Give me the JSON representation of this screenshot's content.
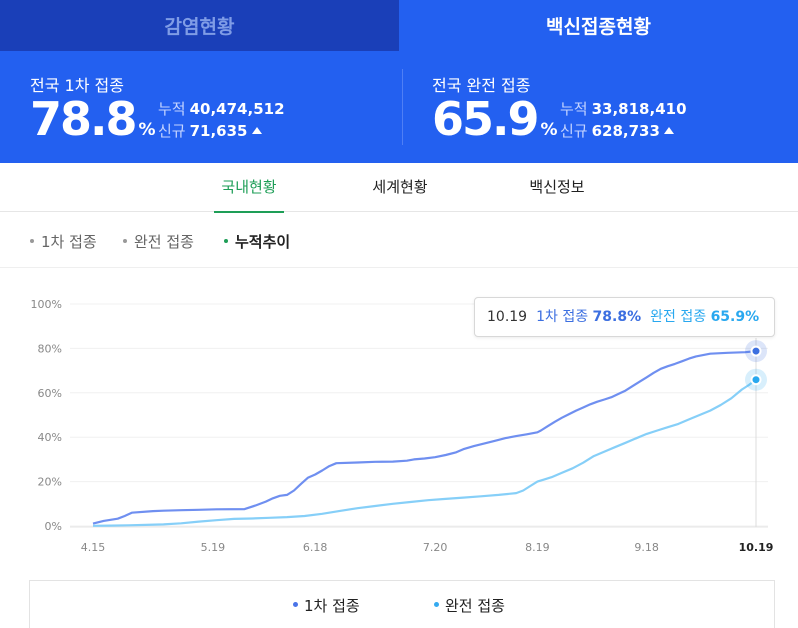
{
  "top_tabs": [
    {
      "label": "감염현황",
      "active": false
    },
    {
      "label": "백신접종현황",
      "active": true
    }
  ],
  "stats": {
    "first": {
      "label": "전국 1차 접종",
      "percent": "78.8",
      "percent_unit": "%",
      "total_label": "누적",
      "total_value": "40,474,512",
      "new_label": "신규",
      "new_value": "71,635"
    },
    "full": {
      "label": "전국 완전 접종",
      "percent": "65.9",
      "percent_unit": "%",
      "total_label": "누적",
      "total_value": "33,818,410",
      "new_label": "신규",
      "new_value": "628,733"
    }
  },
  "sub_tabs": [
    {
      "label": "국내현황",
      "active": true
    },
    {
      "label": "세계현황",
      "active": false
    },
    {
      "label": "백신정보",
      "active": false
    }
  ],
  "filters": [
    {
      "label": "1차 접종",
      "active": false
    },
    {
      "label": "완전 접종",
      "active": false
    },
    {
      "label": "누적추이",
      "active": true
    }
  ],
  "tooltip": {
    "date": "10.19",
    "first_label": "1차 접종",
    "first_value": "78.8%",
    "full_label": "완전 접종",
    "full_value": "65.9%"
  },
  "legend": [
    {
      "label": "1차 접종",
      "color": "#4a74e8"
    },
    {
      "label": "완전 접종",
      "color": "#34aaf0"
    }
  ],
  "colors": {
    "first_line": "#6f8ff0",
    "full_line": "#86cff8",
    "first_point": "#3c6fe0",
    "full_point": "#29a8ef"
  },
  "chart_data": {
    "type": "line",
    "title": "",
    "xlabel": "",
    "ylabel": "",
    "x_ticks": [
      "4.15",
      "5.19",
      "6.18",
      "7.20",
      "8.19",
      "9.18",
      "10.19"
    ],
    "y_ticks": [
      "0%",
      "20%",
      "40%",
      "60%",
      "80%",
      "100%"
    ],
    "ylim": [
      0,
      100
    ],
    "grid": true,
    "legend_position": "bottom",
    "highlighted_x": "10.19",
    "series": [
      {
        "name": "1차 접종",
        "points": [
          [
            0,
            1.1
          ],
          [
            3,
            2.3
          ],
          [
            7,
            3.3
          ],
          [
            9,
            4.5
          ],
          [
            11,
            6.0
          ],
          [
            17,
            6.7
          ],
          [
            20,
            6.9
          ],
          [
            25,
            7.1
          ],
          [
            30,
            7.3
          ],
          [
            35,
            7.5
          ],
          [
            43,
            7.6
          ],
          [
            46,
            9.2
          ],
          [
            49,
            11.0
          ],
          [
            51,
            12.5
          ],
          [
            53,
            13.6
          ],
          [
            55,
            14.0
          ],
          [
            57,
            16.0
          ],
          [
            59,
            19.0
          ],
          [
            61,
            21.8
          ],
          [
            63,
            23.2
          ],
          [
            65,
            25.0
          ],
          [
            67,
            27.0
          ],
          [
            69,
            28.3
          ],
          [
            75,
            28.6
          ],
          [
            80,
            28.9
          ],
          [
            85,
            29.0
          ],
          [
            89,
            29.4
          ],
          [
            91,
            30.0
          ],
          [
            94,
            30.4
          ],
          [
            97,
            31.0
          ],
          [
            100,
            32.0
          ],
          [
            103,
            33.2
          ],
          [
            105,
            34.6
          ],
          [
            108,
            36.0
          ],
          [
            111,
            37.2
          ],
          [
            114,
            38.4
          ],
          [
            117,
            39.6
          ],
          [
            120,
            40.5
          ],
          [
            123,
            41.3
          ],
          [
            126,
            42.2
          ],
          [
            127,
            43.0
          ],
          [
            129,
            45.0
          ],
          [
            131,
            47.0
          ],
          [
            133,
            48.8
          ],
          [
            135,
            50.4
          ],
          [
            137,
            52.0
          ],
          [
            139,
            53.4
          ],
          [
            141,
            54.8
          ],
          [
            143,
            56.0
          ],
          [
            145,
            57.0
          ],
          [
            147,
            58.0
          ],
          [
            149,
            59.5
          ],
          [
            151,
            61.0
          ],
          [
            153,
            63.0
          ],
          [
            155,
            65.0
          ],
          [
            157,
            67.0
          ],
          [
            159,
            69.0
          ],
          [
            161,
            70.8
          ],
          [
            163,
            72.0
          ],
          [
            165,
            73.0
          ],
          [
            167,
            74.2
          ],
          [
            169,
            75.4
          ],
          [
            171,
            76.4
          ],
          [
            173,
            77.0
          ],
          [
            175,
            77.6
          ],
          [
            180,
            78.0
          ],
          [
            185,
            78.3
          ],
          [
            188,
            78.8
          ]
        ]
      },
      {
        "name": "완전 접종",
        "points": [
          [
            0,
            0.1
          ],
          [
            5,
            0.2
          ],
          [
            10,
            0.3
          ],
          [
            15,
            0.5
          ],
          [
            20,
            0.7
          ],
          [
            25,
            1.2
          ],
          [
            30,
            2.0
          ],
          [
            35,
            2.6
          ],
          [
            40,
            3.2
          ],
          [
            45,
            3.4
          ],
          [
            50,
            3.7
          ],
          [
            55,
            4.0
          ],
          [
            60,
            4.5
          ],
          [
            65,
            5.5
          ],
          [
            70,
            6.8
          ],
          [
            75,
            8.0
          ],
          [
            80,
            9.0
          ],
          [
            85,
            10.0
          ],
          [
            90,
            10.8
          ],
          [
            95,
            11.6
          ],
          [
            100,
            12.2
          ],
          [
            105,
            12.8
          ],
          [
            110,
            13.4
          ],
          [
            115,
            14.0
          ],
          [
            120,
            14.8
          ],
          [
            122,
            16.0
          ],
          [
            124,
            18.0
          ],
          [
            126,
            20.0
          ],
          [
            128,
            21.0
          ],
          [
            130,
            22.0
          ],
          [
            133,
            24.0
          ],
          [
            136,
            26.0
          ],
          [
            139,
            28.5
          ],
          [
            142,
            31.5
          ],
          [
            145,
            33.5
          ],
          [
            148,
            35.5
          ],
          [
            151,
            37.5
          ],
          [
            154,
            39.5
          ],
          [
            157,
            41.5
          ],
          [
            160,
            43.0
          ],
          [
            163,
            44.5
          ],
          [
            166,
            46.0
          ],
          [
            169,
            48.0
          ],
          [
            172,
            50.0
          ],
          [
            175,
            52.0
          ],
          [
            178,
            54.5
          ],
          [
            181,
            57.5
          ],
          [
            184,
            61.5
          ],
          [
            186,
            63.5
          ],
          [
            188,
            65.9
          ]
        ]
      }
    ]
  }
}
